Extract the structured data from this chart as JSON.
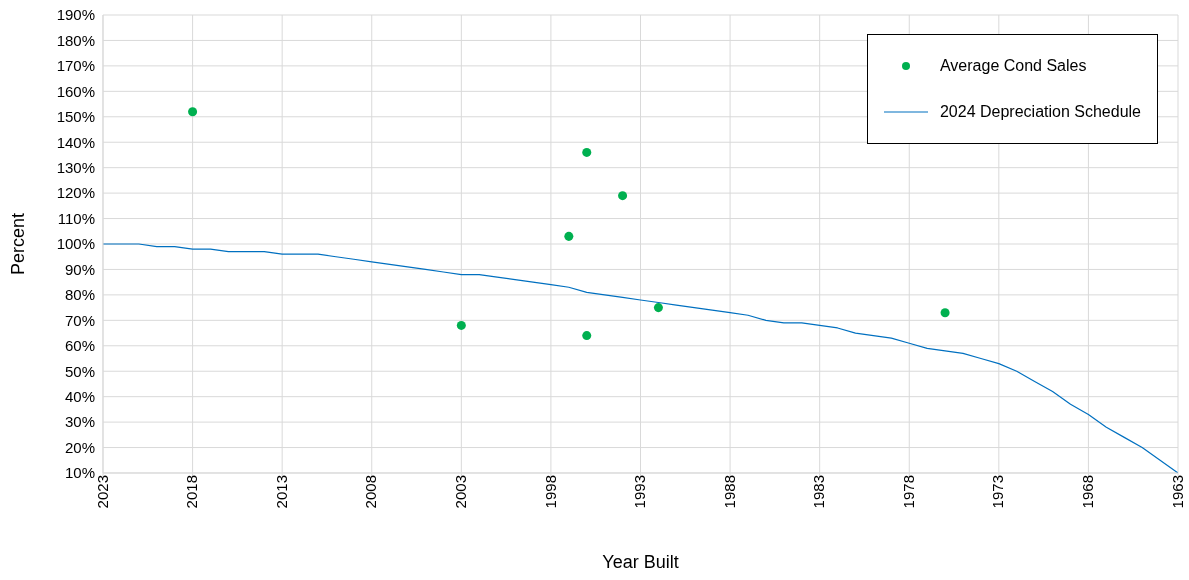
{
  "chart_data": {
    "type": "line",
    "xlabel": "Year Built",
    "ylabel": "Percent",
    "xlim": [
      2023,
      1963
    ],
    "xticks": [
      2023,
      2018,
      2013,
      2008,
      2003,
      1998,
      1993,
      1988,
      1983,
      1978,
      1973,
      1968,
      1963
    ],
    "ylim": [
      10,
      190
    ],
    "yticks": [
      {
        "value": 10,
        "label": "10%"
      },
      {
        "value": 20,
        "label": "20%"
      },
      {
        "value": 30,
        "label": "30%"
      },
      {
        "value": 40,
        "label": "40%"
      },
      {
        "value": 50,
        "label": "50%"
      },
      {
        "value": 60,
        "label": "60%"
      },
      {
        "value": 70,
        "label": "70%"
      },
      {
        "value": 80,
        "label": "80%"
      },
      {
        "value": 90,
        "label": "90%"
      },
      {
        "value": 100,
        "label": "100%"
      },
      {
        "value": 110,
        "label": "110%"
      },
      {
        "value": 120,
        "label": "120%"
      },
      {
        "value": 130,
        "label": "130%"
      },
      {
        "value": 140,
        "label": "140%"
      },
      {
        "value": 150,
        "label": "150%"
      },
      {
        "value": 160,
        "label": "160%"
      },
      {
        "value": 170,
        "label": "170%"
      },
      {
        "value": 180,
        "label": "180%"
      },
      {
        "value": 190,
        "label": "190%"
      }
    ],
    "grid": true,
    "legend": "top right",
    "series": [
      {
        "name": "Average Cond Sales",
        "type": "scatter",
        "marker": "circle",
        "color": "#00b050",
        "x": [
          2018,
          2003,
          1997,
          1996,
          1996,
          1994,
          1992,
          1976
        ],
        "values": [
          152,
          68,
          103,
          136,
          64,
          119,
          75,
          73
        ]
      },
      {
        "name": "2024 Depreciation Schedule",
        "marker": "none",
        "color": "#0070c0",
        "x": [
          2023,
          2022,
          2021,
          2020,
          2019,
          2018,
          2017,
          2016,
          2015,
          2014,
          2013,
          2012,
          2011,
          2010,
          2009,
          2008,
          2007,
          2006,
          2005,
          2004,
          2003,
          2002,
          2001,
          2000,
          1999,
          1998,
          1997,
          1996,
          1995,
          1994,
          1993,
          1992,
          1991,
          1990,
          1989,
          1988,
          1987,
          1986,
          1985,
          1984,
          1983,
          1982,
          1981,
          1980,
          1979,
          1978,
          1977,
          1976,
          1975,
          1974,
          1973,
          1972,
          1971,
          1970,
          1969,
          1968,
          1967,
          1966,
          1965,
          1964,
          1963
        ],
        "values": [
          100,
          100,
          100,
          99,
          99,
          98,
          98,
          97,
          97,
          97,
          96,
          96,
          96,
          95,
          94,
          93,
          92,
          91,
          90,
          89,
          88,
          88,
          87,
          86,
          85,
          84,
          83,
          81,
          80,
          79,
          78,
          77,
          76,
          75,
          74,
          73,
          72,
          70,
          69,
          69,
          68,
          67,
          65,
          64,
          63,
          61,
          59,
          58,
          57,
          55,
          53,
          50,
          46,
          42,
          37,
          33,
          28,
          24,
          20,
          15,
          10
        ]
      }
    ]
  }
}
